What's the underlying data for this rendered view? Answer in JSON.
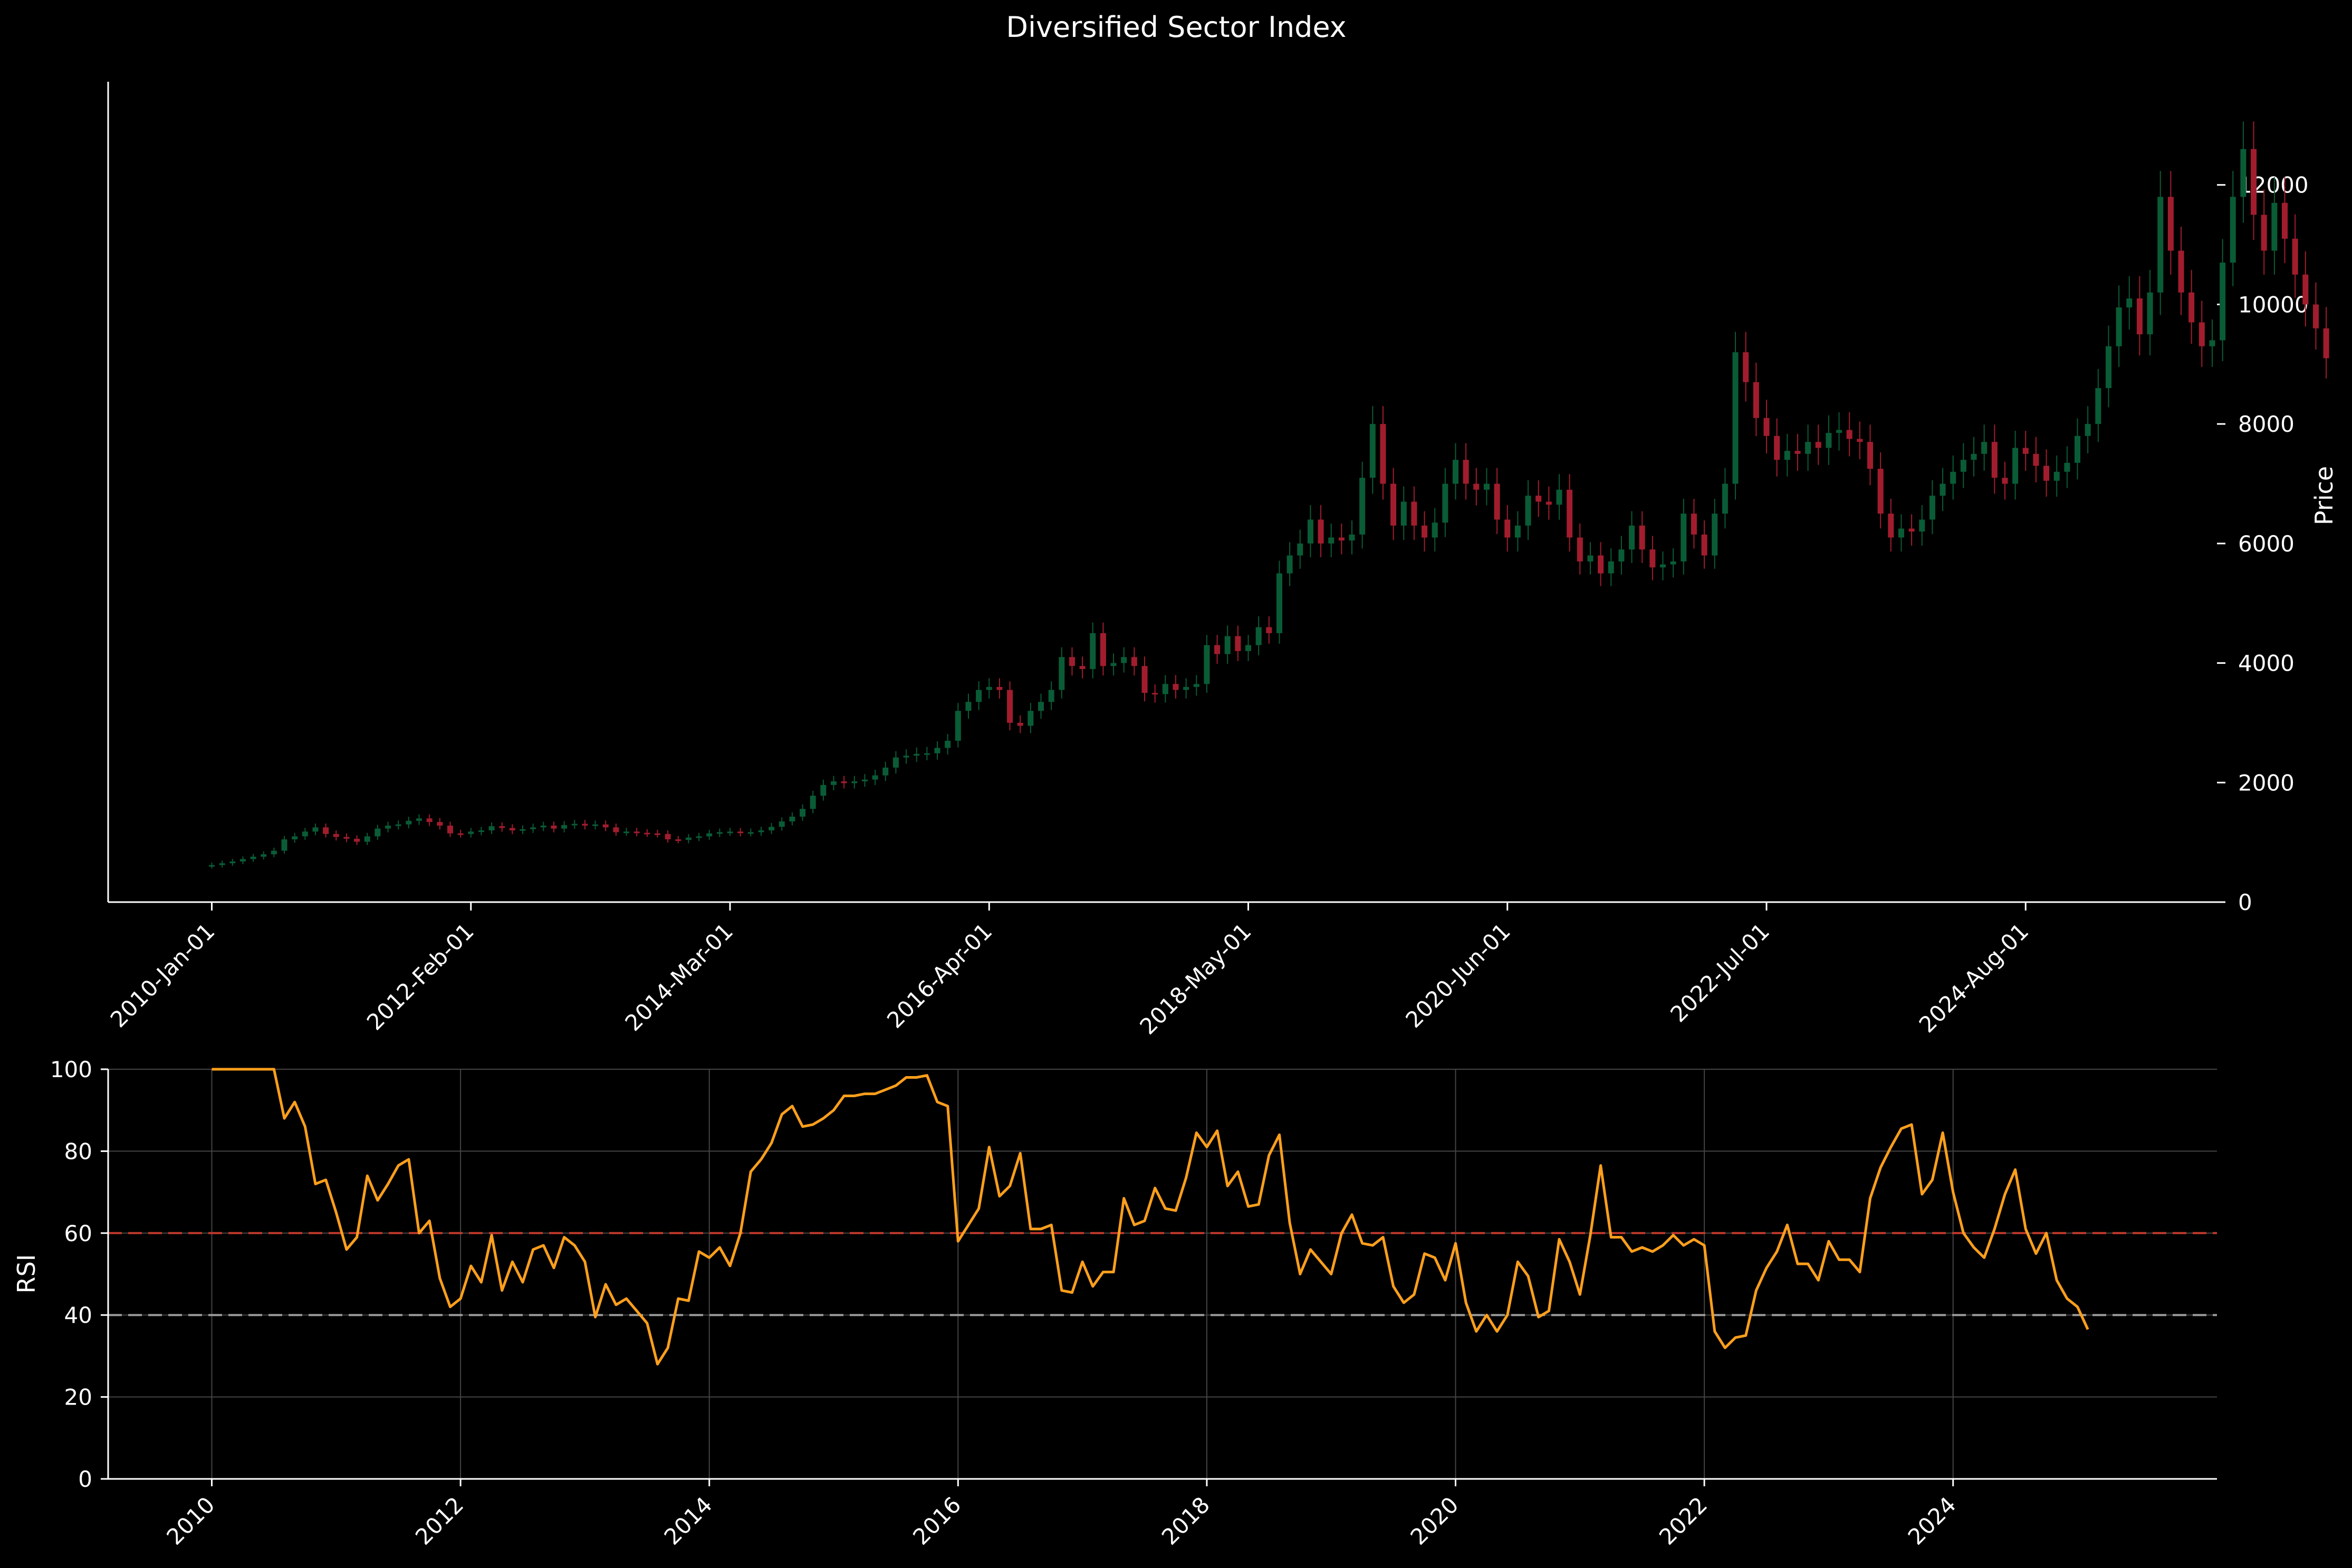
{
  "colors": {
    "background": "#000000",
    "up": "#0a5c36",
    "down": "#a11d2e",
    "rsi_line": "#ff9f1c",
    "overbought_line": "#c0392b",
    "oversold_line": "#9a9a9a",
    "axis": "#ffffff",
    "grid": "#444444"
  },
  "chart_data": [
    {
      "type": "candlestick",
      "title": "Diversified Sector Index",
      "ylabel": "Price",
      "y_axis_side": "right",
      "ylim": [
        0,
        13700
      ],
      "yticks": [
        0,
        2000,
        4000,
        6000,
        8000,
        10000,
        12000
      ],
      "grid": false,
      "x_range": [
        "2009-03-01",
        "2026-02-15"
      ],
      "x_tick_labels": [
        {
          "date": "2010-01-01",
          "label": "2010-Jan-01"
        },
        {
          "date": "2012-02-01",
          "label": "2012-Feb-01"
        },
        {
          "date": "2014-03-01",
          "label": "2014-Mar-01"
        },
        {
          "date": "2016-04-01",
          "label": "2016-Apr-01"
        },
        {
          "date": "2018-05-01",
          "label": "2018-May-01"
        },
        {
          "date": "2020-06-01",
          "label": "2020-Jun-01"
        },
        {
          "date": "2022-07-01",
          "label": "2022-Jul-01"
        },
        {
          "date": "2024-08-01",
          "label": "2024-Aug-01"
        }
      ],
      "period": "monthly",
      "start_date": "2010-01-01",
      "closes": [
        620,
        650,
        680,
        720,
        760,
        800,
        860,
        1050,
        1100,
        1180,
        1250,
        1140,
        1090,
        1060,
        1010,
        1100,
        1230,
        1280,
        1300,
        1360,
        1400,
        1340,
        1280,
        1150,
        1140,
        1180,
        1200,
        1270,
        1240,
        1200,
        1220,
        1250,
        1280,
        1230,
        1290,
        1310,
        1280,
        1300,
        1250,
        1170,
        1180,
        1160,
        1150,
        1140,
        1050,
        1040,
        1080,
        1100,
        1150,
        1170,
        1180,
        1160,
        1170,
        1200,
        1260,
        1350,
        1430,
        1560,
        1780,
        1960,
        2020,
        1990,
        2020,
        2050,
        2120,
        2250,
        2420,
        2450,
        2480,
        2490,
        2580,
        2700,
        3200,
        3350,
        3550,
        3600,
        3550,
        3000,
        2950,
        3200,
        3350,
        3550,
        4100,
        3950,
        3900,
        4500,
        3950,
        4000,
        4100,
        3950,
        3500,
        3480,
        3650,
        3550,
        3600,
        3650,
        4300,
        4150,
        4450,
        4200,
        4300,
        4600,
        4500,
        5500,
        5800,
        6000,
        6400,
        6000,
        6100,
        6050,
        6150,
        7100,
        8000,
        7000,
        6300,
        6700,
        6300,
        6100,
        6350,
        7000,
        7400,
        7000,
        6900,
        7000,
        6400,
        6100,
        6300,
        6800,
        6700,
        6650,
        6900,
        6100,
        5700,
        5800,
        5500,
        5700,
        5900,
        6300,
        5900,
        5600,
        5650,
        5700,
        6500,
        6150,
        5800,
        6500,
        7000,
        9200,
        8700,
        8100,
        7800,
        7400,
        7550,
        7500,
        7700,
        7600,
        7850,
        7900,
        7750,
        7700,
        7250,
        6500,
        6100,
        6250,
        6200,
        6400,
        6800,
        7000,
        7200,
        7400,
        7500,
        7700,
        7100,
        7000,
        7600,
        7500,
        7300,
        7050,
        7200,
        7350,
        7800,
        8000,
        8600,
        9300,
        9950,
        10100,
        9500,
        10200,
        11800,
        10900,
        10200,
        9700,
        9300,
        9400,
        10700,
        11800,
        12600,
        11500,
        10900,
        11700,
        11100,
        10500,
        10000,
        9600,
        9100
      ]
    },
    {
      "type": "line",
      "xlabel": "",
      "ylabel": "RSI",
      "ylim": [
        0,
        100
      ],
      "yticks": [
        0,
        20,
        40,
        60,
        80,
        100
      ],
      "grid": true,
      "x_range": [
        "2009-03-01",
        "2026-02-15"
      ],
      "xticks": [
        2010,
        2012,
        2014,
        2016,
        2018,
        2020,
        2022,
        2024
      ],
      "reference_lines": [
        {
          "y": 60,
          "style": "dashed",
          "color": "#c0392b"
        },
        {
          "y": 40,
          "style": "dashed",
          "color": "#9a9a9a"
        }
      ],
      "series": [
        {
          "period": "monthly",
          "start_date": "2010-01-01",
          "values": [
            100,
            100,
            100,
            100,
            100,
            100,
            100,
            88,
            92,
            86,
            72,
            73,
            65,
            56,
            59,
            74,
            68,
            72,
            76.5,
            78,
            60,
            63,
            49,
            42,
            44,
            52,
            48,
            59.5,
            46,
            53,
            48,
            56,
            57,
            51.5,
            59,
            57,
            53,
            39.5,
            47.5,
            42.5,
            44,
            41,
            38,
            28,
            32,
            44,
            43.5,
            55.5,
            54,
            56.5,
            52,
            60,
            75,
            78,
            82,
            89,
            91,
            86,
            86.5,
            88,
            90,
            93.5,
            93.5,
            94,
            94,
            95,
            96,
            98,
            98,
            98.5,
            92,
            91,
            58,
            62,
            66,
            81,
            69,
            71.5,
            79.5,
            61,
            61,
            62,
            46,
            45.5,
            53,
            47,
            50.5,
            50.5,
            68.5,
            62,
            63,
            71,
            66,
            65.5,
            73.5,
            84.5,
            81,
            85,
            71.5,
            75,
            66.5,
            67,
            79,
            84,
            62.5,
            50,
            56,
            53,
            50,
            60,
            64.5,
            57.5,
            57,
            59,
            47,
            43,
            45,
            55,
            54,
            48.5,
            57.5,
            43,
            36,
            40,
            36,
            40,
            53,
            49.5,
            39.5,
            41,
            58.5,
            53,
            45,
            59.5,
            76.5,
            59,
            59,
            55.5,
            56.5,
            55.5,
            57,
            59.5,
            57,
            58.5,
            57,
            36,
            32,
            34.5,
            35,
            46,
            51.5,
            55.5,
            62,
            52.5,
            52.5,
            48.5,
            58,
            53.5,
            53.5,
            50.5,
            68.5,
            76,
            81,
            85.5,
            86.5,
            69.5,
            73,
            84.5,
            70,
            60,
            56.5,
            54,
            61,
            69.5,
            75.5,
            61,
            55,
            60,
            48.5,
            44,
            42,
            36.5
          ]
        }
      ]
    }
  ]
}
